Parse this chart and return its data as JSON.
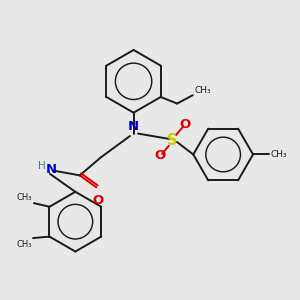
{
  "bg_color": "#e8e8e8",
  "bond_color": "#1a1a1a",
  "N_color": "#0000cc",
  "S_color": "#cccc00",
  "O_color": "#dd0000",
  "H_color": "#408080",
  "figsize": [
    3.0,
    3.0
  ],
  "dpi": 100,
  "xlim": [
    0,
    10
  ],
  "ylim": [
    0,
    10
  ]
}
